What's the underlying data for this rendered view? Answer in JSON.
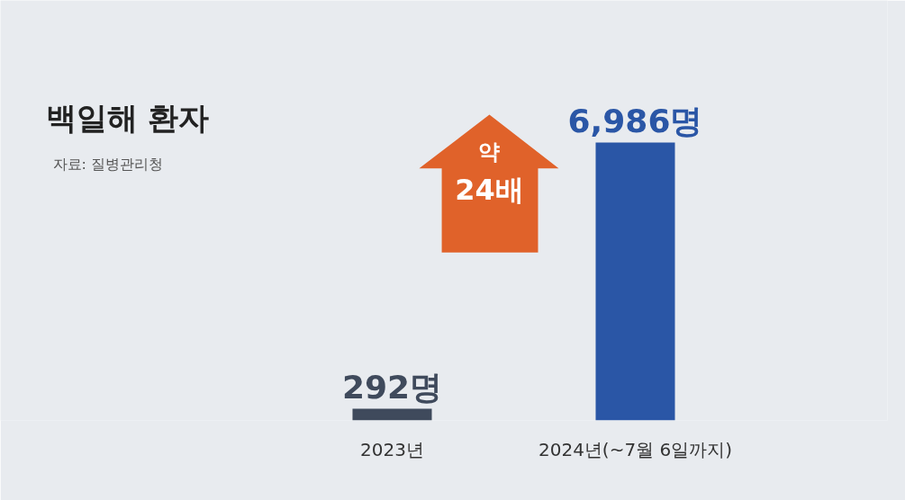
{
  "chart_data": {
    "type": "bar",
    "title": "백일해 환자",
    "categories": [
      "2023년",
      "2024년(~7월 6일까지)"
    ],
    "values": [
      292,
      6986
    ],
    "colors": [
      "#3f4a5c",
      "#2a56a6"
    ],
    "value_labels": [
      "292명",
      "6,986명"
    ],
    "annotations": [
      "자료: 질병관리청",
      "약 24배"
    ],
    "grid": false
  }
}
